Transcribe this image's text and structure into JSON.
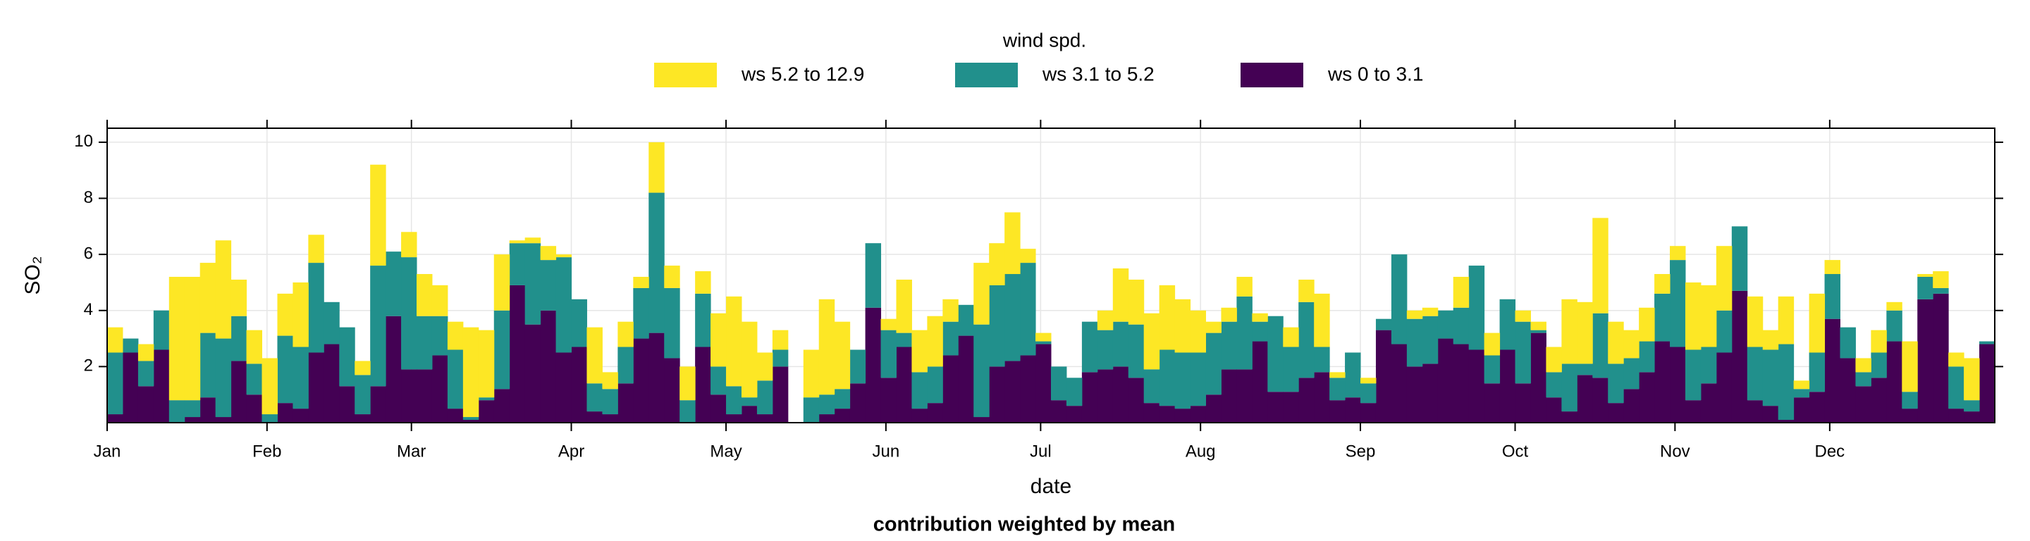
{
  "chart_data": {
    "type": "stacked-histogram",
    "legend_title": "wind spd.",
    "xlabel": "date",
    "ylabel": "SO₂",
    "caption": "contribution weighted by mean",
    "xlim": [
      0,
      366
    ],
    "xticks": [
      {
        "value": 0,
        "label": "Jan"
      },
      {
        "value": 31,
        "label": "Feb"
      },
      {
        "value": 59,
        "label": "Mar"
      },
      {
        "value": 90,
        "label": "Apr"
      },
      {
        "value": 120,
        "label": "May"
      },
      {
        "value": 151,
        "label": "Jun"
      },
      {
        "value": 181,
        "label": "Jul"
      },
      {
        "value": 212,
        "label": "Aug"
      },
      {
        "value": 243,
        "label": "Sep"
      },
      {
        "value": 273,
        "label": "Oct"
      },
      {
        "value": 304,
        "label": "Nov"
      },
      {
        "value": 334,
        "label": "Dec"
      }
    ],
    "ylim": [
      0,
      10.5
    ],
    "yticks": [
      2,
      4,
      6,
      8,
      10
    ],
    "grid": true,
    "legend": "top",
    "bins": [
      0,
      3,
      6,
      9,
      12,
      15,
      18,
      21,
      24,
      27,
      30,
      33,
      36,
      39,
      42,
      45,
      48,
      51,
      54,
      57,
      60,
      63,
      66,
      69,
      72,
      75,
      78,
      81,
      84,
      87,
      90,
      93,
      96,
      99,
      102,
      105,
      108,
      111,
      114,
      117,
      120,
      123,
      126,
      129,
      132,
      135,
      138,
      141,
      144,
      147,
      150,
      153,
      156,
      159,
      162,
      165,
      168,
      171,
      174,
      177,
      180,
      183,
      186,
      189,
      192,
      195,
      198,
      201,
      204,
      207,
      210,
      213,
      216,
      219,
      222,
      225,
      228,
      231,
      234,
      237,
      240,
      243,
      246,
      249,
      252,
      255,
      258,
      261,
      264,
      267,
      270,
      273,
      276,
      279,
      282,
      285,
      288,
      291,
      294,
      297,
      300,
      303,
      306,
      309,
      312,
      315,
      318,
      321,
      324,
      327,
      330,
      333,
      336,
      339,
      342,
      345,
      348,
      351,
      354,
      357,
      360,
      363,
      366
    ],
    "series": [
      {
        "name": "ws 5.2 to 12.9",
        "color": "#fde725",
        "values": [
          0.9,
          0,
          0.6,
          0,
          4.4,
          4.4,
          2.5,
          3.5,
          1.3,
          1.2,
          2.0,
          1.5,
          2.3,
          1.0,
          0,
          0,
          0.5,
          3.6,
          0,
          0.9,
          1.5,
          1.1,
          1.0,
          3.2,
          2.4,
          2.0,
          0.1,
          0.2,
          0.5,
          0.1,
          0,
          2.0,
          0.6,
          0.9,
          0.4,
          1.8,
          0.8,
          1.2,
          0.8,
          1.9,
          3.2,
          2.7,
          1.0,
          0.7,
          0,
          1.7,
          3.4,
          2.4,
          0,
          0,
          0.4,
          1.9,
          1.5,
          1.8,
          0.8,
          0,
          2.2,
          1.5,
          2.2,
          0.5,
          0.3,
          0,
          0,
          0,
          0.7,
          1.9,
          1.6,
          2.0,
          2.3,
          1.9,
          1.5,
          0.4,
          0.5,
          0.7,
          0.3,
          0,
          0.7,
          0.8,
          1.9,
          0.2,
          0,
          0.2,
          0,
          0,
          0.3,
          0.3,
          0,
          1.1,
          0,
          0.8,
          0,
          0.4,
          0.3,
          0.9,
          2.3,
          2.2,
          3.4,
          1.5,
          1.0,
          1.2,
          0.7,
          0.5,
          2.4,
          2.2,
          2.3,
          0,
          1.8,
          0.7,
          1.7,
          0.3,
          2.1,
          0.5,
          0,
          0.5,
          0.8,
          0.3,
          1.8,
          0.1,
          0.6,
          0.5,
          1.5,
          0
        ]
      },
      {
        "name": "ws 3.1 to 5.2",
        "color": "#21908c",
        "values": [
          2.2,
          0.5,
          0.9,
          1.4,
          0.8,
          0.6,
          2.3,
          2.8,
          1.6,
          1.1,
          0.3,
          2.4,
          2.2,
          3.2,
          1.5,
          2.1,
          1.4,
          4.3,
          2.3,
          4.0,
          1.9,
          1.4,
          2.1,
          0.1,
          0.1,
          2.8,
          1.5,
          2.9,
          1.8,
          3.4,
          1.7,
          1.0,
          0.9,
          1.3,
          1.8,
          5.0,
          2.5,
          0.8,
          1.9,
          1.0,
          1.0,
          0.3,
          1.2,
          0.6,
          0,
          0.9,
          0.7,
          0.7,
          1.2,
          2.3,
          1.7,
          0.5,
          1.3,
          1.3,
          1.2,
          1.1,
          3.3,
          2.9,
          3.1,
          3.3,
          0.1,
          1.2,
          1.0,
          1.8,
          1.4,
          1.6,
          1.9,
          1.2,
          2.0,
          2.0,
          1.9,
          2.2,
          1.7,
          2.6,
          0.7,
          2.7,
          1.6,
          2.7,
          0.9,
          0.8,
          1.6,
          0.7,
          0.4,
          3.2,
          1.7,
          1.7,
          1.0,
          1.3,
          3.0,
          1.0,
          1.8,
          2.2,
          0.1,
          0.9,
          1.7,
          0.4,
          2.3,
          1.4,
          1.1,
          1.1,
          1.7,
          3.1,
          1.8,
          1.3,
          1.5,
          2.3,
          1.9,
          2.0,
          2.7,
          0.3,
          1.4,
          1.6,
          1.1,
          0.5,
          0.9,
          1.1,
          0.6,
          0.8,
          0.2,
          1.5,
          0.4,
          0.1
        ]
      },
      {
        "name": "ws 0 to 3.1",
        "color": "#440154",
        "values": [
          0.3,
          2.5,
          1.3,
          2.6,
          0,
          0.2,
          0.9,
          0.2,
          2.2,
          1.0,
          0,
          0.7,
          0.5,
          2.5,
          2.8,
          1.3,
          0.3,
          1.3,
          3.8,
          1.9,
          1.9,
          2.4,
          0.5,
          0.1,
          0.8,
          1.2,
          4.9,
          3.5,
          4.0,
          2.5,
          2.7,
          0.4,
          0.3,
          1.4,
          3.0,
          3.2,
          2.3,
          0,
          2.7,
          1.0,
          0.3,
          0.6,
          0.3,
          2.0,
          0,
          0,
          0.3,
          0.5,
          1.4,
          4.1,
          1.6,
          2.7,
          0.5,
          0.7,
          2.4,
          3.1,
          0.2,
          2.0,
          2.2,
          2.4,
          2.8,
          0.8,
          0.6,
          1.8,
          1.9,
          2.0,
          1.6,
          0.7,
          0.6,
          0.5,
          0.6,
          1.0,
          1.9,
          1.9,
          2.9,
          1.1,
          1.1,
          1.6,
          1.8,
          0.8,
          0.9,
          0.7,
          3.3,
          2.8,
          2.0,
          2.1,
          3.0,
          2.8,
          2.6,
          1.4,
          2.6,
          1.4,
          3.2,
          0.9,
          0.4,
          1.7,
          1.6,
          0.7,
          1.2,
          1.8,
          2.9,
          2.7,
          0.8,
          1.4,
          2.5,
          4.7,
          0.8,
          0.6,
          0.1,
          0.9,
          1.1,
          3.7,
          2.3,
          1.3,
          1.6,
          2.9,
          0.5,
          4.4,
          4.6,
          0.5,
          0.4,
          2.8
        ]
      }
    ]
  }
}
